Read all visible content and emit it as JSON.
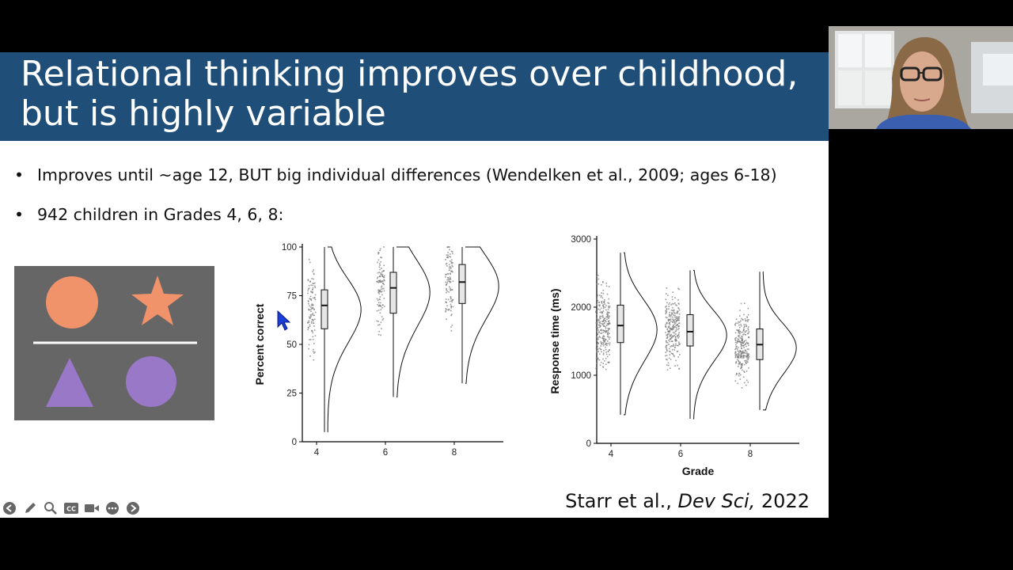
{
  "slide": {
    "title_line1": "Relational thinking improves over childhood,",
    "title_line2": "but is highly variable",
    "bullet1": "Improves until ~age 12, BUT big individual differences (Wendelken et al., 2009; ages 6-18)",
    "bullet2": "942 children in Grades 4, 6, 8:",
    "bullet_marker": "•",
    "citation_prefix": "Starr et al., ",
    "citation_journal": "Dev Sci,",
    "citation_year": " 2022"
  },
  "shapes_panel": {
    "background": "#666666",
    "top_color": "#f0926a",
    "bottom_color": "#9a78c8",
    "shapes": [
      "circle",
      "star",
      "triangle",
      "circle"
    ]
  },
  "chart_data": [
    {
      "type": "raincloud",
      "title": "",
      "xlabel": "",
      "ylabel": "Percent correct",
      "categories": [
        "4",
        "6",
        "8"
      ],
      "yticks": [
        "0",
        "25",
        "50",
        "75",
        "100"
      ],
      "ylim": [
        0,
        100
      ],
      "series": [
        {
          "category": "4",
          "median": 70,
          "q1": 58,
          "q3": 78,
          "whisker_low": 5,
          "whisker_high": 100
        },
        {
          "category": "6",
          "median": 79,
          "q1": 66,
          "q3": 87,
          "whisker_low": 23,
          "whisker_high": 100
        },
        {
          "category": "8",
          "median": 82,
          "q1": 71,
          "q3": 91,
          "whisker_low": 30,
          "whisker_high": 100
        }
      ]
    },
    {
      "type": "raincloud",
      "title": "",
      "xlabel": "Grade",
      "ylabel": "Response time (ms)",
      "categories": [
        "4",
        "6",
        "8"
      ],
      "yticks": [
        "0",
        "1000",
        "2000",
        "3000"
      ],
      "ylim": [
        0,
        3000
      ],
      "series": [
        {
          "category": "4",
          "median": 1730,
          "q1": 1480,
          "q3": 2030,
          "whisker_low": 420,
          "whisker_high": 2800
        },
        {
          "category": "6",
          "median": 1640,
          "q1": 1430,
          "q3": 1890,
          "whisker_low": 360,
          "whisker_high": 2540
        },
        {
          "category": "8",
          "median": 1450,
          "q1": 1230,
          "q3": 1680,
          "whisker_low": 490,
          "whisker_high": 2520
        }
      ]
    }
  ],
  "toolbar": {
    "buttons": [
      "prev-icon",
      "pen-icon",
      "zoom-icon",
      "captions-icon",
      "video-icon",
      "more-icon",
      "next-icon"
    ],
    "cc_label": "CC"
  },
  "colors": {
    "title_band": "#1f4e79",
    "points": "#777777"
  }
}
